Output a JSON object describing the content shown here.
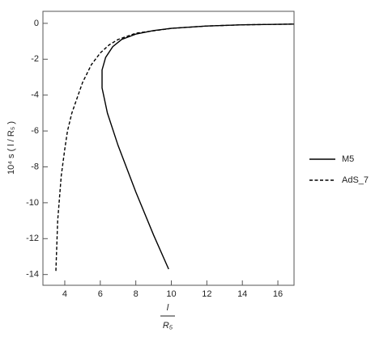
{
  "chart_data": {
    "type": "line",
    "xlabel": {
      "numerator": "l",
      "denominator": "R₅"
    },
    "ylabel": "10⁴ s ( l / R₅ )",
    "xlim": [
      2.77,
      16.91
    ],
    "xticks": [
      4,
      6,
      8,
      10,
      12,
      14,
      16
    ],
    "ylim": [
      -14.6,
      0.67
    ],
    "yticks": [
      0,
      -2,
      -4,
      -6,
      -8,
      -10,
      -12,
      -14
    ],
    "series": [
      {
        "name": "M5",
        "color": "#000000",
        "dashed": false,
        "x": [
          9.85,
          9.0,
          8.0,
          7.0,
          6.4,
          6.1,
          6.1,
          6.3,
          6.7,
          7.2,
          8.0,
          9.0,
          10.0,
          12.0,
          14.0,
          16.9
        ],
        "values": [
          -13.7,
          -11.8,
          -9.4,
          -6.8,
          -5.0,
          -3.6,
          -2.6,
          -1.9,
          -1.3,
          -0.9,
          -0.6,
          -0.4,
          -0.28,
          -0.15,
          -0.08,
          -0.04
        ]
      },
      {
        "name": "AdS_7",
        "color": "#000000",
        "dashed": true,
        "x": [
          3.5,
          3.6,
          3.8,
          4.0,
          4.15,
          4.4,
          5.0,
          5.5,
          6.0,
          6.5,
          7.0,
          8.0,
          10.0,
          12.0,
          14.0,
          16.9
        ],
        "values": [
          -13.8,
          -11.0,
          -8.5,
          -7.0,
          -6.0,
          -5.0,
          -3.3,
          -2.3,
          -1.65,
          -1.2,
          -0.9,
          -0.55,
          -0.28,
          -0.15,
          -0.08,
          -0.04
        ]
      }
    ],
    "legend": "right"
  }
}
